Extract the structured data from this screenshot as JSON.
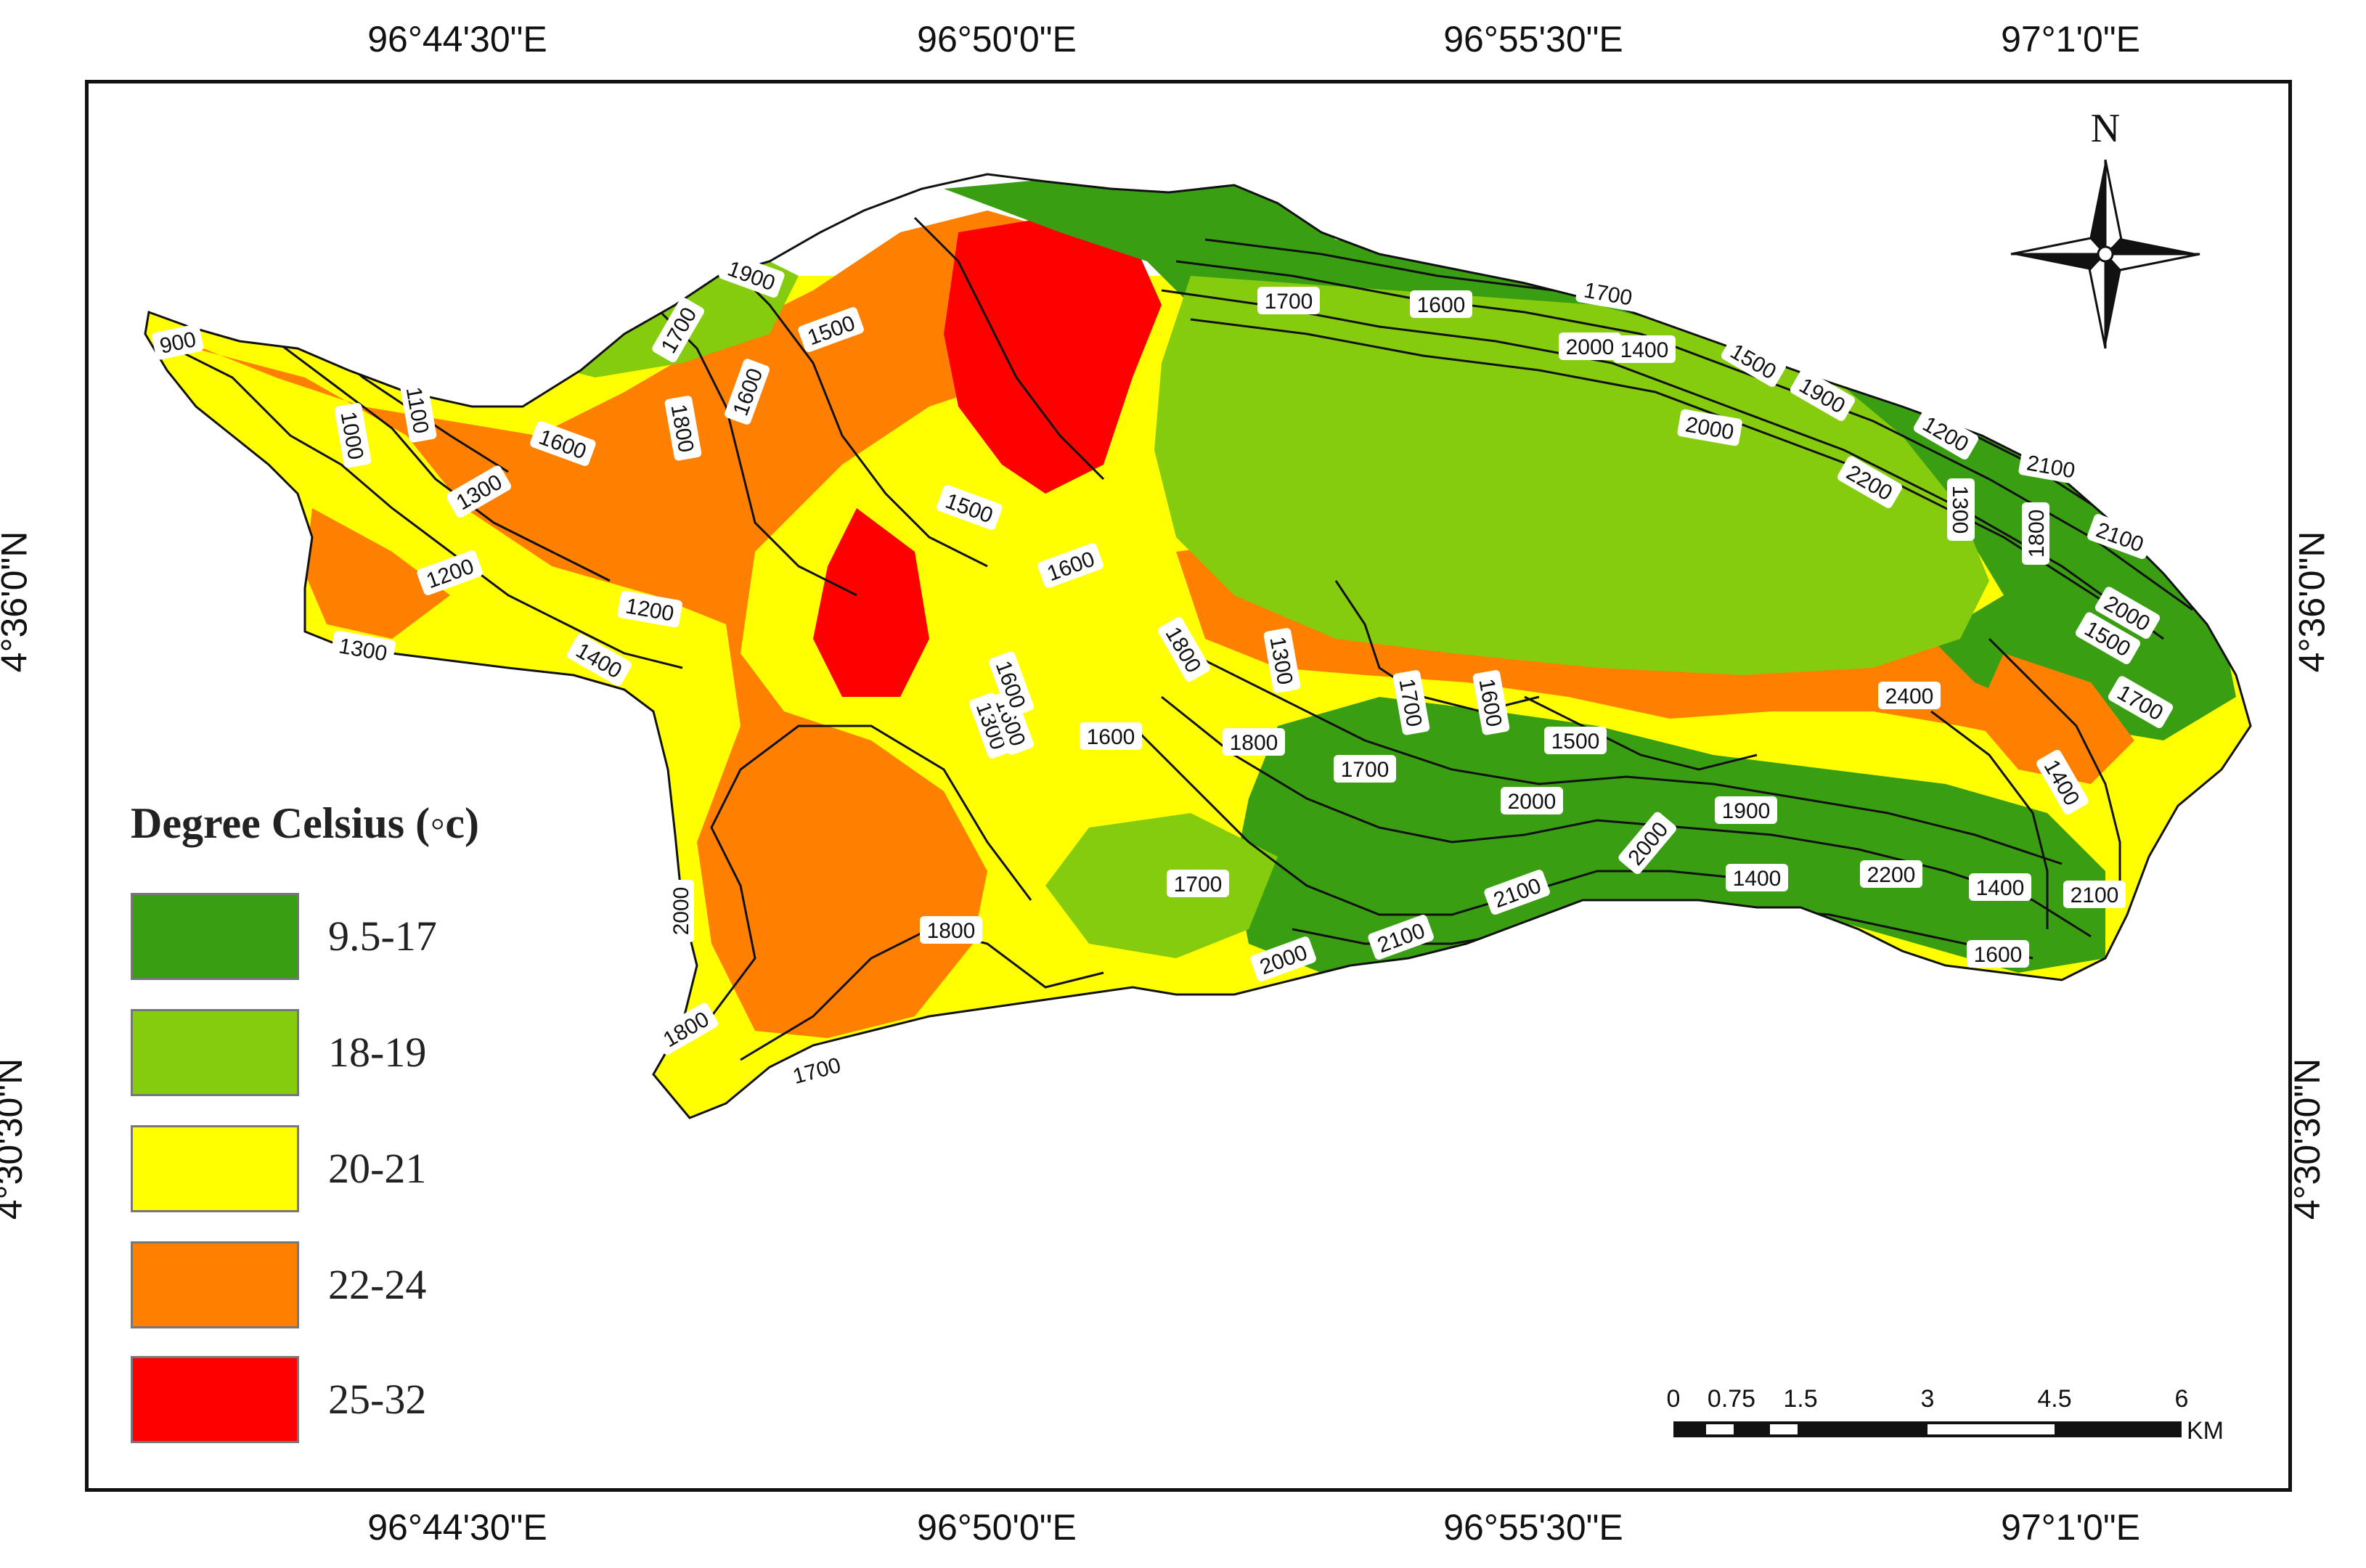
{
  "coordinates": {
    "top": [
      "96°44'30\"E",
      "96°50'0\"E",
      "96°55'30\"E",
      "97°1'0\"E"
    ],
    "bottom": [
      "96°44'30\"E",
      "96°50'0\"E",
      "96°55'30\"E",
      "97°1'0\"E"
    ],
    "left": [
      "4°36'0\"N",
      "4°30'30\"N"
    ],
    "right": [
      "4°36'0\"N",
      "4°30'30\"N"
    ]
  },
  "legend": {
    "title": "Degree Celsius (◦c)",
    "classes": [
      {
        "label": "9.5-17",
        "color": "#3a9e12"
      },
      {
        "label": "18-19",
        "color": "#85cc0e"
      },
      {
        "label": "20-21",
        "color": "#ffff00"
      },
      {
        "label": "22-24",
        "color": "#ff8000"
      },
      {
        "label": "25-32",
        "color": "#ff0000"
      }
    ]
  },
  "north_arrow": {
    "label": "N"
  },
  "scale_bar": {
    "ticks": [
      "0",
      "0.75",
      "1.5",
      "3",
      "4.5",
      "6"
    ],
    "unit": "KM"
  },
  "contour_labels": [
    "900",
    "1000",
    "1100",
    "1300",
    "1200",
    "1300",
    "1200",
    "1400",
    "1600",
    "1900",
    "1700",
    "1800",
    "1600",
    "1500",
    "1500",
    "1600",
    "1700",
    "1600",
    "1700",
    "2000",
    "1400",
    "1500",
    "1900",
    "2000",
    "1200",
    "2100",
    "2200",
    "1300",
    "1800",
    "2100",
    "2000",
    "1700",
    "1500",
    "1800",
    "1300",
    "1300",
    "1600",
    "1600",
    "1800",
    "1700",
    "1700",
    "1600",
    "1500",
    "2000",
    "1900",
    "2000",
    "1400",
    "2200",
    "2400",
    "2100",
    "1400",
    "1700",
    "1800",
    "2000",
    "2000",
    "2100",
    "2100",
    "1600",
    "1400",
    "1800",
    "1700",
    "1600"
  ]
}
